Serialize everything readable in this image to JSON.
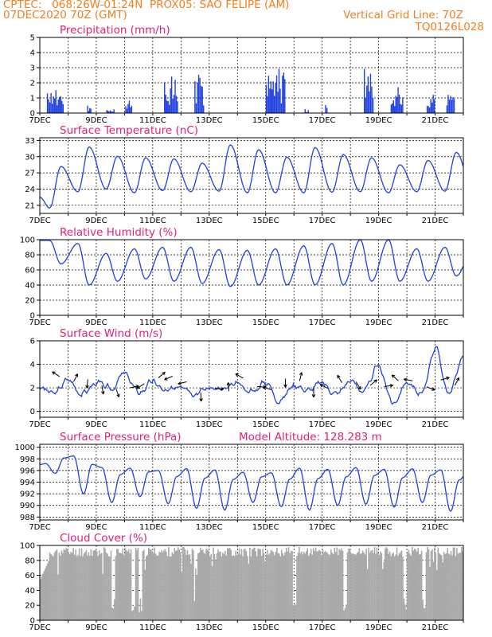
{
  "header": {
    "line1_left": "CPTEC:   068:26W-01:24N  PROX05: SAO FELIPE (AM)",
    "line2_left": "07DEC2020 70Z (GMT)",
    "line2_right": "Vertical Grid Line: 70Z",
    "line3_right": "TQ0126L028"
  },
  "colors": {
    "header": "#f08020",
    "title": "#e0207a",
    "line": "#2040e0",
    "cloud": "#a9a9a9"
  },
  "x_tick_labels": [
    "7DEC",
    "9DEC",
    "11DEC",
    "13DEC",
    "15DEC",
    "17DEC",
    "19DEC",
    "21DEC"
  ],
  "chart_data": [
    {
      "id": "precip",
      "type": "bar",
      "title": "Precipitation (mm/h)",
      "ylim": [
        0,
        5
      ],
      "yticks": [
        "0",
        "1",
        "2",
        "3",
        "4",
        "5"
      ],
      "x_range_days": [
        0,
        15
      ],
      "bursts": [
        {
          "day": 0.55,
          "width": 0.6,
          "peak": 2.1
        },
        {
          "day": 1.75,
          "width": 0.15,
          "peak": 0.5
        },
        {
          "day": 2.5,
          "width": 0.3,
          "peak": 0.3
        },
        {
          "day": 3.15,
          "width": 0.25,
          "peak": 0.9
        },
        {
          "day": 4.65,
          "width": 0.5,
          "peak": 2.5
        },
        {
          "day": 5.65,
          "width": 0.35,
          "peak": 2.6
        },
        {
          "day": 8.35,
          "width": 0.7,
          "peak": 3.6
        },
        {
          "day": 9.45,
          "width": 0.15,
          "peak": 0.3
        },
        {
          "day": 10.15,
          "width": 0.1,
          "peak": 0.6
        },
        {
          "day": 11.65,
          "width": 0.35,
          "peak": 4.7
        },
        {
          "day": 12.65,
          "width": 0.45,
          "peak": 1.8
        },
        {
          "day": 13.85,
          "width": 0.3,
          "peak": 1.6
        },
        {
          "day": 14.55,
          "width": 0.3,
          "peak": 1.5
        }
      ]
    },
    {
      "id": "temp",
      "type": "line",
      "title": "Surface Temperature (nC)",
      "ylim": [
        19.5,
        33.5
      ],
      "yticks": [
        "21",
        "24",
        "27",
        "30",
        "33"
      ],
      "x_range_days": [
        0,
        15
      ],
      "daily_min": [
        20.5,
        23.5,
        24,
        23.3,
        23.7,
        23.5,
        23.6,
        23.3,
        23.3,
        23.3,
        23.4,
        23.5,
        23.3,
        23.5,
        23.6,
        23.5
      ],
      "daily_max": [
        28.2,
        31.8,
        30.1,
        29.8,
        29.6,
        28.8,
        32.2,
        31.3,
        29.9,
        31.7,
        30.4,
        29.8,
        28.5,
        29.3,
        30.8,
        29.5
      ]
    },
    {
      "id": "rh",
      "type": "line",
      "title": "Relative Humidity (%)",
      "ylim": [
        0,
        100
      ],
      "yticks": [
        "0",
        "20",
        "40",
        "60",
        "80",
        "100"
      ],
      "x_range_days": [
        0,
        15
      ],
      "daily_max": [
        99,
        95,
        82,
        88,
        90,
        90,
        87,
        86,
        88,
        92,
        95,
        100,
        100,
        88,
        90,
        88
      ],
      "daily_min": [
        68,
        40,
        45,
        48,
        45,
        42,
        38,
        40,
        40,
        40,
        40,
        45,
        45,
        45,
        52,
        60
      ]
    },
    {
      "id": "wind",
      "type": "line",
      "title": "Surface Wind (m/s)",
      "ylim": [
        -0.5,
        6
      ],
      "yticks": [
        "0",
        "2",
        "4",
        "6"
      ],
      "x_range_days": [
        0,
        15
      ],
      "values_12h": [
        2.0,
        1.5,
        2.7,
        1.5,
        2.4,
        1.9,
        3.2,
        1.6,
        2.5,
        1.6,
        2.4,
        1.6,
        2.0,
        1.8,
        2.3,
        1.7,
        2.5,
        0.9,
        2.3,
        1.8,
        2.4,
        1.5,
        2.6,
        1.7,
        3.9,
        0.7,
        2.5,
        1.3,
        5.4,
        1.5,
        4.8
      ]
    },
    {
      "id": "press",
      "type": "line",
      "title": "Surface Pressure (hPa)",
      "annotation": "Model Altitude: 128.283 m",
      "ylim": [
        987.5,
        1000.5
      ],
      "yticks": [
        "988",
        "990",
        "992",
        "994",
        "996",
        "998",
        "1000"
      ],
      "x_range_days": [
        0,
        15
      ],
      "daily_high": [
        997.2,
        998.5,
        996.5,
        996.4,
        996.0,
        996.3,
        996.1,
        995.7,
        995.6,
        996.4,
        996.2,
        996.5,
        996.2,
        996.3,
        996.1,
        996.1
      ],
      "daily_low": [
        995.5,
        992.0,
        990.5,
        991.5,
        990.3,
        989.5,
        989.2,
        990.5,
        989.8,
        989.2,
        990.0,
        990.2,
        989.7,
        990.5,
        989.0,
        990.0
      ]
    },
    {
      "id": "cloud",
      "type": "bar",
      "title": "Cloud Cover (%)",
      "ylim": [
        0,
        100
      ],
      "yticks": [
        "0",
        "20",
        "40",
        "60",
        "80",
        "100"
      ],
      "x_range_days": [
        0,
        15
      ],
      "clear_gaps_day": [
        2.6,
        3.3,
        3.55,
        5.5,
        9.0,
        10.8,
        12.9,
        13.6
      ]
    }
  ]
}
